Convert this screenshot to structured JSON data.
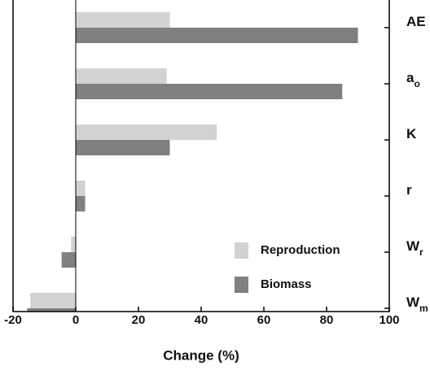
{
  "chart_data": {
    "type": "hbar",
    "x_label": "Change (%)",
    "categories": [
      {
        "main": "AE"
      },
      {
        "main": "a",
        "sub": "o"
      },
      {
        "main": "K"
      },
      {
        "main": "r"
      },
      {
        "main": "W",
        "sub": "r"
      },
      {
        "main": "W",
        "sub": "m"
      }
    ],
    "series": [
      {
        "name": "Reproduction",
        "color": "#d2d2d2",
        "values": [
          30,
          29,
          45,
          3,
          -1.5,
          -14.5
        ]
      },
      {
        "name": "Biomass",
        "color": "#808080",
        "values": [
          90,
          85,
          30,
          3,
          -4.5,
          -15.5
        ]
      }
    ],
    "xlim": [
      -20,
      100
    ],
    "xticks": [
      -20,
      0,
      20,
      40,
      60,
      80,
      100
    ]
  }
}
